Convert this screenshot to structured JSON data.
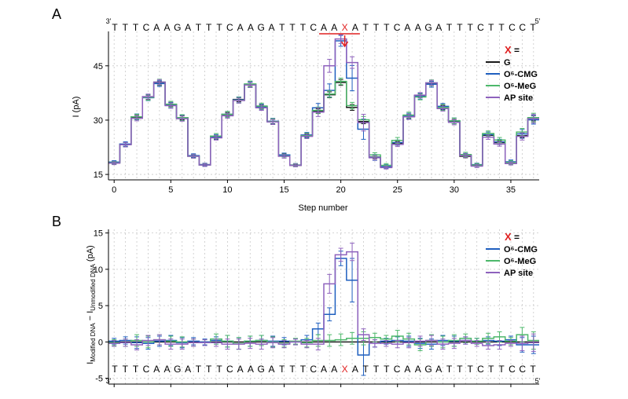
{
  "figure": {
    "panel_a_label": "A",
    "panel_b_label": "B"
  },
  "colors": {
    "G": "#1a1a1a",
    "O6-CMG": "#1f5fbf",
    "O6-MeG": "#4db86b",
    "AP site": "#8e62bd",
    "mark": "#e02020"
  },
  "chart_data": [
    {
      "id": "A",
      "type": "line",
      "step": true,
      "title": "",
      "xlabel": "Step number",
      "ylabel": "I (pA)",
      "xlim": [
        -0.5,
        37.5
      ],
      "ylim": [
        13.5,
        54.5
      ],
      "xticks": [
        0,
        5,
        10,
        15,
        20,
        25,
        30,
        35
      ],
      "yticks": [
        15,
        30,
        45
      ],
      "sequence": {
        "prime_left": "3'",
        "prime_right": "5'",
        "bases": [
          "T",
          "T",
          "T",
          "C",
          "A",
          "A",
          "G",
          "A",
          "T",
          "T",
          "T",
          "C",
          "A",
          "A",
          "G",
          "A",
          "T",
          "T",
          "T",
          "C",
          "A",
          "A",
          "X",
          "A",
          "T",
          "T",
          "T",
          "C",
          "A",
          "A",
          "G",
          "A",
          "T",
          "T",
          "T",
          "C",
          "T",
          "T",
          "C",
          "C",
          "T"
        ],
        "mark_index": 22
      },
      "legend": {
        "title_symbol": "X",
        "title_suffix": " =",
        "entries": [
          "G",
          "O⁶-CMG",
          "O⁶-MeG",
          "AP site"
        ],
        "placement": "top-right"
      },
      "series": [
        {
          "name": "G",
          "values": [
            18.3,
            23.3,
            30.7,
            36.3,
            40.2,
            34.3,
            30.7,
            20.1,
            17.7,
            25.2,
            31.5,
            35.7,
            39.9,
            33.7,
            29.6,
            20.3,
            17.5,
            25.8,
            32.5,
            37.0,
            40.4,
            33.5,
            29.6,
            19.8,
            17.1,
            23.6,
            31.0,
            36.8,
            40.1,
            33.5,
            29.6,
            20.0,
            17.5,
            25.8,
            23.8,
            18.2,
            25.7,
            30.5
          ],
          "errors": [
            0.3,
            0.5,
            0.6,
            0.6,
            0.6,
            0.6,
            0.6,
            0.4,
            0.3,
            0.5,
            0.6,
            0.6,
            0.6,
            0.6,
            0.6,
            0.4,
            0.3,
            0.5,
            0.6,
            0.8,
            0.8,
            0.8,
            0.6,
            0.4,
            0.3,
            0.5,
            0.6,
            0.6,
            0.6,
            0.6,
            0.6,
            0.4,
            0.3,
            0.5,
            0.5,
            0.3,
            0.5,
            0.7
          ]
        },
        {
          "name": "O⁶-CMG",
          "values": [
            18.4,
            23.4,
            30.9,
            36.2,
            40.1,
            34.1,
            30.6,
            20.2,
            17.7,
            25.4,
            31.6,
            35.6,
            39.8,
            33.6,
            29.7,
            20.4,
            17.6,
            25.9,
            33.4,
            38.2,
            51.9,
            41.6,
            27.5,
            19.7,
            17.2,
            23.8,
            31.1,
            36.6,
            39.9,
            33.8,
            29.8,
            20.3,
            17.7,
            26.0,
            24.0,
            18.5,
            26.2,
            30.1
          ],
          "errors": [
            0.4,
            0.6,
            0.8,
            0.8,
            0.8,
            0.8,
            0.8,
            0.5,
            0.4,
            0.6,
            0.8,
            0.8,
            0.8,
            0.8,
            0.8,
            0.5,
            0.4,
            0.7,
            1.2,
            1.8,
            1.5,
            3.5,
            2.8,
            0.8,
            0.5,
            0.7,
            0.8,
            0.8,
            0.8,
            0.8,
            0.8,
            0.5,
            0.4,
            0.7,
            0.7,
            0.5,
            1.2,
            1.2
          ]
        },
        {
          "name": "O⁶-MeG",
          "values": [
            18.2,
            23.2,
            30.9,
            36.3,
            40.5,
            34.4,
            30.7,
            20.0,
            17.6,
            25.6,
            31.6,
            35.5,
            40.0,
            33.9,
            29.6,
            20.1,
            17.6,
            25.7,
            32.7,
            37.2,
            40.7,
            34.0,
            30.1,
            20.4,
            17.5,
            24.4,
            31.4,
            36.4,
            40.3,
            33.5,
            29.8,
            20.5,
            17.6,
            26.3,
            24.5,
            18.3,
            26.7,
            30.7
          ],
          "errors": [
            0.4,
            0.6,
            0.7,
            0.8,
            0.8,
            0.8,
            0.8,
            0.5,
            0.4,
            0.7,
            0.8,
            0.8,
            0.8,
            0.8,
            0.8,
            0.5,
            0.4,
            0.7,
            0.9,
            0.9,
            0.9,
            0.9,
            0.9,
            0.6,
            0.5,
            0.8,
            0.8,
            0.8,
            0.8,
            0.8,
            0.8,
            0.6,
            0.4,
            0.7,
            0.7,
            0.5,
            1.0,
            1.2
          ]
        },
        {
          "name": "AP site",
          "values": [
            18.1,
            23.2,
            30.5,
            36.5,
            40.5,
            34.0,
            30.4,
            20.0,
            17.6,
            25.1,
            31.2,
            35.4,
            39.7,
            33.4,
            29.5,
            20.0,
            17.5,
            25.5,
            32.2,
            45.0,
            52.4,
            45.9,
            29.3,
            19.6,
            16.9,
            23.3,
            30.9,
            36.9,
            40.3,
            33.2,
            29.4,
            20.2,
            17.3,
            25.3,
            23.4,
            18.0,
            25.5,
            30.4
          ],
          "errors": [
            0.4,
            0.6,
            0.7,
            0.7,
            0.7,
            0.7,
            0.7,
            0.5,
            0.4,
            0.6,
            0.7,
            0.7,
            0.7,
            0.7,
            0.7,
            0.5,
            0.4,
            0.6,
            1.2,
            1.8,
            1.2,
            1.6,
            2.3,
            0.6,
            0.4,
            0.6,
            0.7,
            0.7,
            0.7,
            0.7,
            0.7,
            0.5,
            0.4,
            0.6,
            0.6,
            0.4,
            1.0,
            1.2
          ]
        }
      ]
    },
    {
      "id": "B",
      "type": "line",
      "step": true,
      "title": "",
      "xlabel": "",
      "ylabel_main": "I",
      "ylabel_sub1": "Modified DNA",
      "ylabel_mid": " − I",
      "ylabel_sub2": "Unmodified DNA",
      "ylabel_unit": " (pA)",
      "xlim": [
        -0.5,
        37.5
      ],
      "ylim": [
        -5.8,
        15.5
      ],
      "xticks": [
        0,
        5,
        10,
        15,
        20,
        25,
        30,
        35
      ],
      "xtick_labels_shown": false,
      "yticks": [
        -5,
        0,
        5,
        10,
        15
      ],
      "reference_line": 0,
      "sequence": {
        "prime_left": "3'",
        "prime_right": "5'",
        "bases": [
          "T",
          "T",
          "T",
          "C",
          "A",
          "A",
          "G",
          "A",
          "T",
          "T",
          "T",
          "C",
          "A",
          "A",
          "G",
          "A",
          "T",
          "T",
          "T",
          "C",
          "A",
          "A",
          "X",
          "A",
          "T",
          "T",
          "T",
          "C",
          "A",
          "A",
          "G",
          "A",
          "T",
          "T",
          "T",
          "C",
          "T",
          "T",
          "C",
          "C",
          "T"
        ],
        "mark_index": 22
      },
      "legend": {
        "title_symbol": "X",
        "title_suffix": " =",
        "entries": [
          "O⁶-CMG",
          "O⁶-MeG",
          "AP site"
        ],
        "placement": "top-right"
      },
      "series": [
        {
          "name": "O⁶-CMG",
          "values": [
            0.1,
            0.2,
            -0.1,
            -0.2,
            0.1,
            0.2,
            -0.1,
            0.1,
            0.0,
            0.2,
            0.1,
            -0.2,
            0.1,
            0.2,
            0.1,
            0.1,
            0.0,
            0.3,
            1.8,
            3.8,
            11.5,
            8.5,
            -1.8,
            -0.2,
            0.1,
            0.2,
            0.1,
            -0.2,
            -0.3,
            0.2,
            0.1,
            0.2,
            0.1,
            0.2,
            0.1,
            0.3,
            -0.4,
            -0.4
          ],
          "errors": [
            0.4,
            0.5,
            0.8,
            0.8,
            0.7,
            0.7,
            0.7,
            0.5,
            0.4,
            0.5,
            0.8,
            0.8,
            0.7,
            0.7,
            0.7,
            0.5,
            0.4,
            0.6,
            0.8,
            0.9,
            1.0,
            3.0,
            2.8,
            0.5,
            0.4,
            0.5,
            0.7,
            0.7,
            0.7,
            0.7,
            0.7,
            0.5,
            0.4,
            0.5,
            0.6,
            0.5,
            1.0,
            1.2
          ]
        },
        {
          "name": "O⁶-MeG",
          "values": [
            -0.1,
            -0.1,
            0.2,
            0.0,
            0.3,
            0.1,
            0.0,
            -0.1,
            -0.1,
            0.4,
            0.1,
            -0.2,
            0.1,
            0.2,
            0.0,
            -0.2,
            0.1,
            -0.1,
            0.2,
            0.2,
            0.3,
            0.5,
            0.5,
            0.6,
            0.4,
            0.8,
            0.4,
            -0.4,
            0.2,
            0.0,
            0.2,
            0.5,
            0.1,
            0.5,
            0.7,
            0.1,
            1.0,
            0.2
          ],
          "errors": [
            0.4,
            0.5,
            0.8,
            0.8,
            0.7,
            0.7,
            0.7,
            0.5,
            0.4,
            0.7,
            0.8,
            0.8,
            0.7,
            0.7,
            0.7,
            0.5,
            0.4,
            0.6,
            0.8,
            0.8,
            0.8,
            0.8,
            0.9,
            0.6,
            0.5,
            0.8,
            0.8,
            0.8,
            0.8,
            0.8,
            0.8,
            0.6,
            0.4,
            0.7,
            0.7,
            0.5,
            1.0,
            1.2
          ]
        },
        {
          "name": "AP site",
          "values": [
            -0.2,
            -0.1,
            -0.4,
            0.2,
            0.3,
            -0.3,
            -0.3,
            -0.1,
            -0.1,
            -0.1,
            -0.3,
            -0.3,
            -0.2,
            -0.3,
            -0.1,
            -0.3,
            0.0,
            -0.3,
            -0.3,
            8.0,
            12.0,
            12.4,
            1.0,
            -0.2,
            -0.2,
            -0.3,
            -0.1,
            0.1,
            0.2,
            -0.3,
            -0.2,
            0.2,
            -0.2,
            -0.5,
            -0.4,
            -0.2,
            -0.2,
            -0.1
          ],
          "errors": [
            0.4,
            0.5,
            0.7,
            0.7,
            0.7,
            0.7,
            0.7,
            0.5,
            0.4,
            0.5,
            0.7,
            0.7,
            0.7,
            0.7,
            0.7,
            0.5,
            0.4,
            0.5,
            0.8,
            1.3,
            0.9,
            1.2,
            0.8,
            0.5,
            0.4,
            0.5,
            0.7,
            0.7,
            0.7,
            0.7,
            0.7,
            0.5,
            0.4,
            0.5,
            0.6,
            0.4,
            1.0,
            1.2
          ]
        }
      ]
    }
  ]
}
